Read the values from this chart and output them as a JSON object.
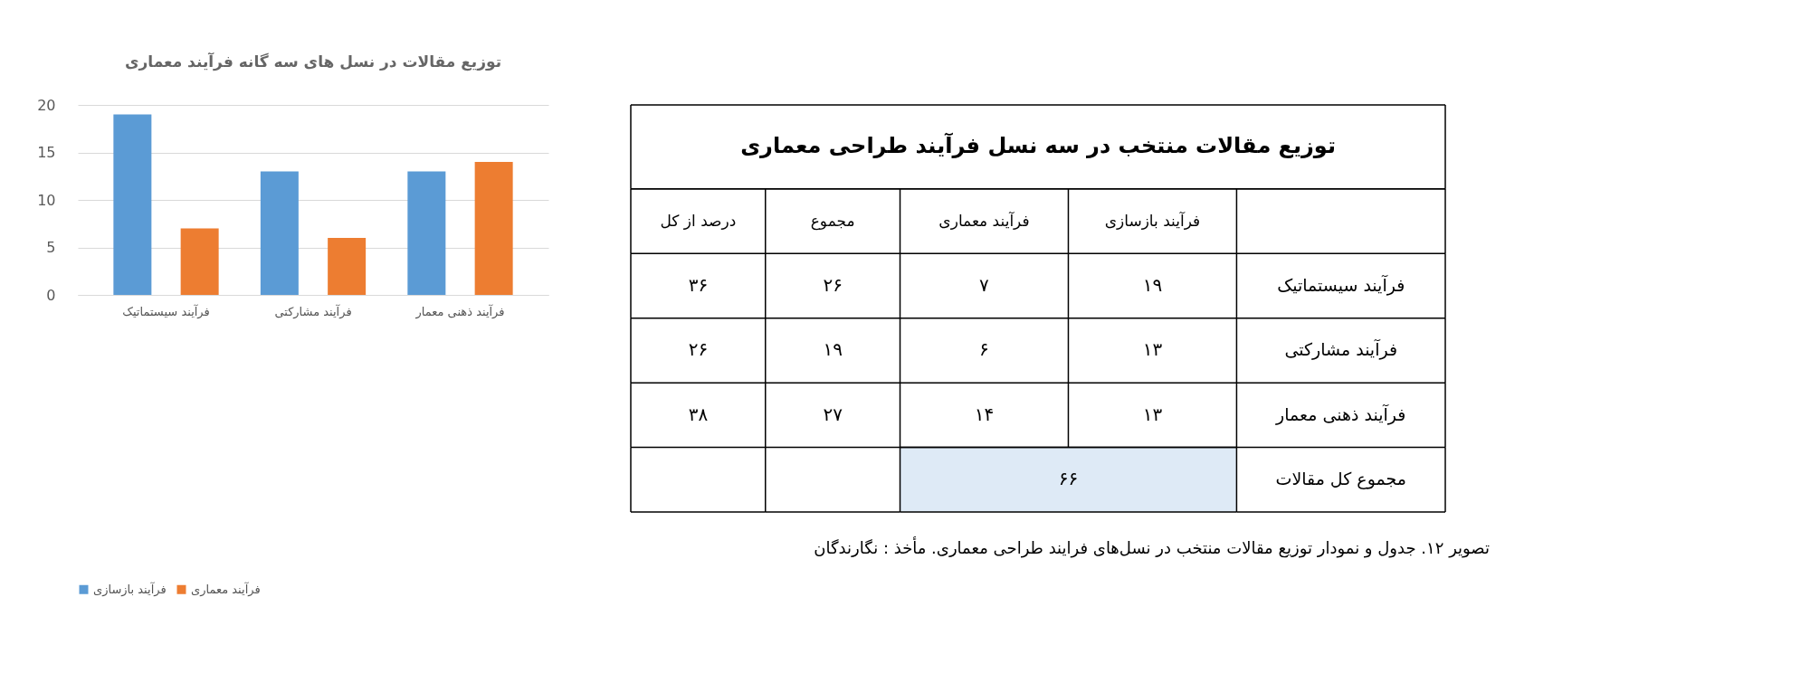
{
  "chart_data": [
    {
      "type": "bar",
      "title": "توزیع مقالات در نسل های سه گانه فرآیند معماری",
      "categories": [
        "فرآیند سیستماتیک",
        "فرآیند مشارکتی",
        "فرآیند ذهنی معمار"
      ],
      "series": [
        {
          "name": "فرآیند بازسازی",
          "color": "#5b9bd5",
          "values": [
            19,
            13,
            13
          ]
        },
        {
          "name": "فرآیند معماری",
          "color": "#ed7d31",
          "values": [
            7,
            6,
            14
          ]
        }
      ],
      "ylim": [
        0,
        20
      ],
      "yticks": [
        0,
        5,
        10,
        15,
        20
      ],
      "grid": "y",
      "legend": "bottom"
    },
    {
      "type": "other",
      "title": "توزیع مقالات منتخب در سه نسل فرآیند طراحی معماری",
      "categories": [
        "درصد از کل",
        "مجموع",
        "فرآیند معماری",
        "فرآیند بازسازی"
      ],
      "y_categories": [
        "فرآیند سیستماتیک",
        "فرآیند مشارکتی",
        "فرآیند ذهنی معمار",
        "مجموع کل مقالات"
      ],
      "cell_labels": [
        [
          "۳۶",
          "۲۶",
          "۷",
          "۱۹"
        ],
        [
          "۲۶",
          "۱۹",
          "۶",
          "۱۳"
        ],
        [
          "۳۸",
          "۲۷",
          "۱۴",
          "۱۳"
        ],
        [
          null,
          null,
          "۶۶",
          null
        ]
      ],
      "annotations": [
        "تصویر ۱۲. جدول و نمودار توزیع مقالات منتخب در نسل‌های فرایند طراحی معماری. مأخذ : نگارندگان"
      ]
    }
  ]
}
